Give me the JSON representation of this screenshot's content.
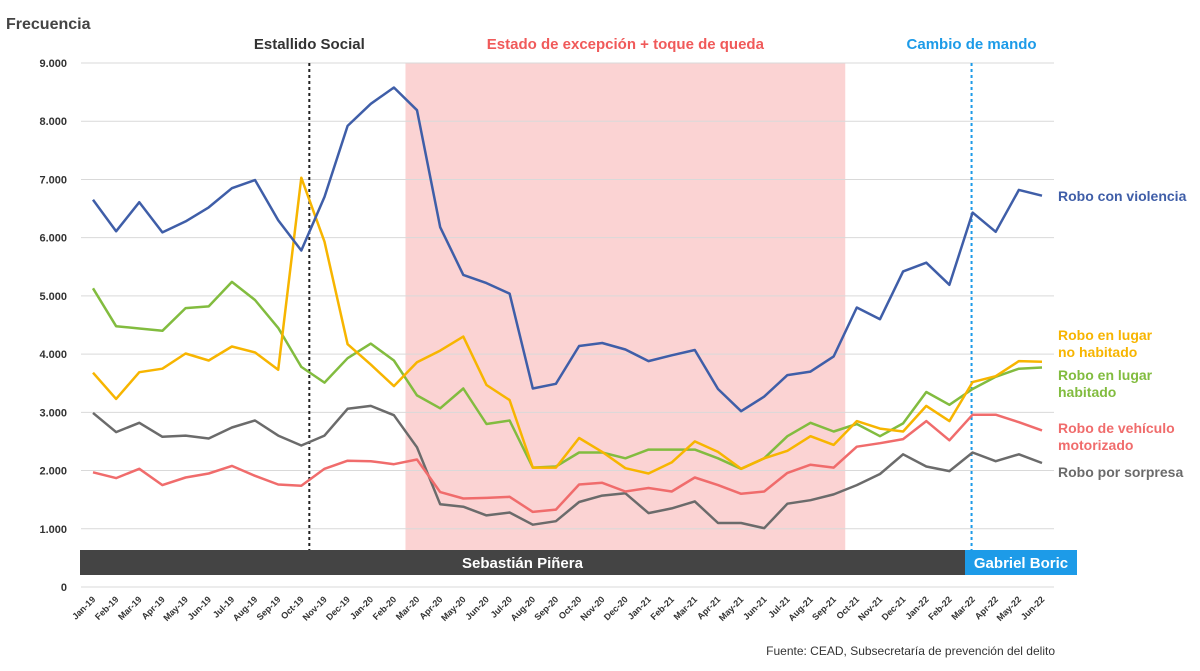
{
  "chart_data": {
    "type": "line",
    "ylabel": "Frecuencia",
    "ylim": [
      0,
      9000
    ],
    "yticks": [
      0,
      1000,
      2000,
      3000,
      4000,
      5000,
      6000,
      7000,
      8000,
      9000
    ],
    "ytick_labels": [
      "0",
      "1.000",
      "2.000",
      "3.000",
      "4.000",
      "5.000",
      "6.000",
      "7.000",
      "8.000",
      "9.000"
    ],
    "grid": "horizontal",
    "categories": [
      "Jan-19",
      "Feb-19",
      "Mar-19",
      "Apr-19",
      "May-19",
      "Jun-19",
      "Jul-19",
      "Aug-19",
      "Sep-19",
      "Oct-19",
      "Nov-19",
      "Dec-19",
      "Jan-20",
      "Feb-20",
      "Mar-20",
      "Apr-20",
      "May-20",
      "Jun-20",
      "Jul-20",
      "Aug-20",
      "Sep-20",
      "Oct-20",
      "Nov-20",
      "Dec-20",
      "Jan-21",
      "Feb-21",
      "Mar-21",
      "Apr-21",
      "May-21",
      "Jun-21",
      "Jul-21",
      "Aug-21",
      "Sep-21",
      "Oct-21",
      "Nov-21",
      "Dec-21",
      "Jan-22",
      "Feb-22",
      "Mar-22",
      "Apr-22",
      "May-22",
      "Jun-22"
    ],
    "series": [
      {
        "name": "Robo con violencia",
        "color": "#3f5ea8",
        "values": [
          6650,
          6110,
          6610,
          6090,
          6280,
          6520,
          6850,
          6990,
          6300,
          5780,
          6700,
          7920,
          8300,
          8580,
          8190,
          6180,
          5360,
          5220,
          5040,
          3410,
          3490,
          4140,
          4190,
          4080,
          3880,
          3980,
          4070,
          3400,
          3020,
          3270,
          3640,
          3700,
          3960,
          4800,
          4600,
          5420,
          5570,
          5190,
          6430,
          6100,
          6820,
          6720
        ]
      },
      {
        "name": "Robo en lugar no habitado",
        "color": "#f7b500",
        "values": [
          3680,
          3230,
          3690,
          3750,
          4010,
          3890,
          4130,
          4030,
          3730,
          7030,
          5930,
          4170,
          3820,
          3450,
          3860,
          4060,
          4300,
          3470,
          3210,
          2050,
          2050,
          2560,
          2320,
          2040,
          1950,
          2140,
          2500,
          2320,
          2030,
          2210,
          2340,
          2590,
          2440,
          2850,
          2720,
          2670,
          3110,
          2850,
          3520,
          3620,
          3880,
          3870
        ]
      },
      {
        "name": "Robo en lugar habitado",
        "color": "#82bc3f",
        "values": [
          5130,
          4480,
          4440,
          4400,
          4790,
          4820,
          5240,
          4930,
          4450,
          3780,
          3510,
          3930,
          4180,
          3890,
          3290,
          3070,
          3410,
          2800,
          2860,
          2050,
          2070,
          2310,
          2310,
          2210,
          2360,
          2360,
          2360,
          2210,
          2030,
          2210,
          2590,
          2820,
          2670,
          2800,
          2590,
          2810,
          3350,
          3130,
          3400,
          3610,
          3750,
          3770
        ]
      },
      {
        "name": "Robo de vehículo motorizado",
        "color": "#f06c6c",
        "values": [
          1970,
          1870,
          2030,
          1750,
          1880,
          1950,
          2080,
          1910,
          1760,
          1740,
          2030,
          2170,
          2160,
          2110,
          2190,
          1630,
          1520,
          1530,
          1550,
          1290,
          1330,
          1760,
          1790,
          1640,
          1700,
          1640,
          1880,
          1750,
          1600,
          1640,
          1960,
          2100,
          2050,
          2410,
          2470,
          2540,
          2850,
          2520,
          2960,
          2960,
          2830,
          2690
        ]
      },
      {
        "name": "Robo por sorpresa",
        "color": "#6b6b6b",
        "values": [
          2990,
          2660,
          2820,
          2580,
          2600,
          2550,
          2740,
          2860,
          2600,
          2430,
          2600,
          3060,
          3110,
          2950,
          2400,
          1420,
          1380,
          1230,
          1280,
          1070,
          1130,
          1460,
          1570,
          1610,
          1270,
          1350,
          1470,
          1100,
          1100,
          1010,
          1430,
          1490,
          1590,
          1750,
          1940,
          2280,
          2070,
          1990,
          2310,
          2160,
          2280,
          2130
        ]
      }
    ],
    "series_labels": [
      {
        "lines": [
          "Robo con violencia"
        ]
      },
      {
        "lines": [
          "Robo en lugar",
          "no habitado"
        ]
      },
      {
        "lines": [
          "Robo en lugar",
          "habitado"
        ]
      },
      {
        "lines": [
          "Robo de vehículo",
          "motorizado"
        ]
      },
      {
        "lines": [
          "Robo por sorpresa"
        ]
      }
    ],
    "annotations": {
      "estallido": {
        "label": "Estallido Social",
        "at": "Oct-19",
        "color": "#333333"
      },
      "excepcion": {
        "label": "Estado de excepción + toque de queda",
        "from": "Mar-20",
        "to": "Oct-21",
        "color": "#f05a5a",
        "fill": "#fbd3d3"
      },
      "cambio": {
        "label": "Cambio de mando",
        "at": "Mar-22",
        "color": "#1d9be8"
      }
    },
    "government_bands": [
      {
        "label": "Sebastián Piñera",
        "from": "Jan-19",
        "to": "Feb-22",
        "color": "#444444"
      },
      {
        "label": "Gabriel Boric",
        "from": "Mar-22",
        "to": "Jun-22",
        "color": "#1d9be8"
      }
    ],
    "source": "Fuente: CEAD, Subsecretaría de prevención del delito"
  }
}
